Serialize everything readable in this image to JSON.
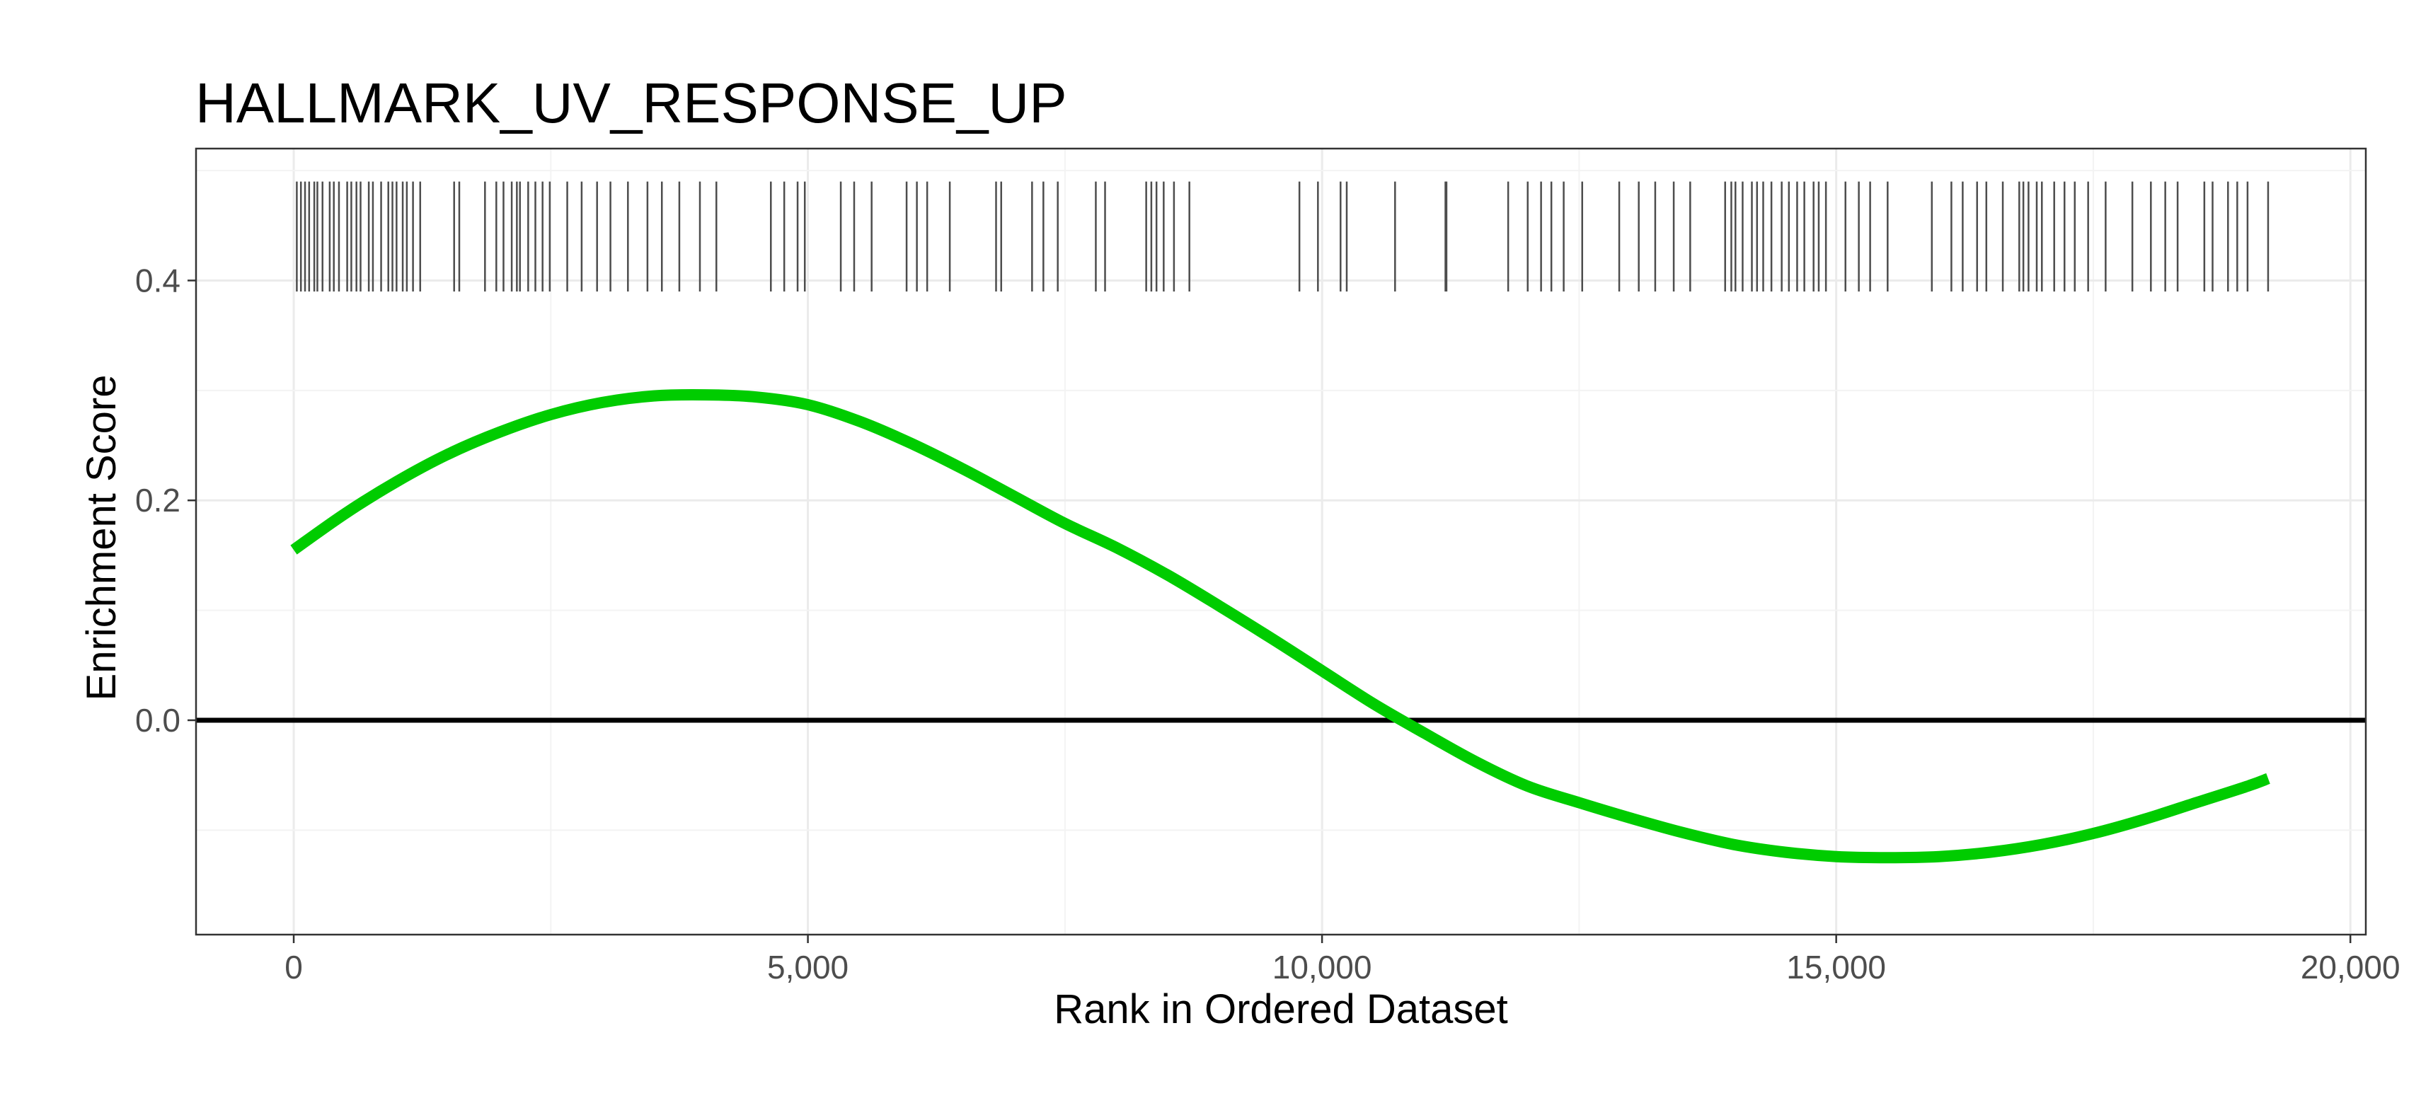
{
  "chart_data": {
    "type": "line",
    "title": "HALLMARK_UV_RESPONSE_UP",
    "xlabel": "Rank in Ordered Dataset",
    "ylabel": "Enrichment Score",
    "xlim": [
      -950,
      20150
    ],
    "ylim": [
      -0.195,
      0.52
    ],
    "x_ticks": [
      0,
      5000,
      10000,
      15000,
      20000
    ],
    "x_tick_labels": [
      "0",
      "5,000",
      "10,000",
      "15,000",
      "20,000"
    ],
    "y_ticks": [
      0.0,
      0.2,
      0.4
    ],
    "y_tick_labels": [
      "0.0",
      "0.2",
      "0.4"
    ],
    "grid": true,
    "reference_line_y": 0.0,
    "series": [
      {
        "color": "#00cc00",
        "x": [
          0,
          500,
          1000,
          1500,
          2000,
          2500,
          3000,
          3500,
          4000,
          4500,
          5000,
          5500,
          6000,
          6500,
          7000,
          7500,
          8000,
          8500,
          9000,
          9500,
          10000,
          10500,
          11000,
          11500,
          12000,
          12500,
          13000,
          13500,
          14000,
          14500,
          15000,
          15500,
          16000,
          16500,
          17000,
          17500,
          18000,
          18500,
          19000,
          19200
        ],
        "y": [
          0.155,
          0.188,
          0.217,
          0.242,
          0.262,
          0.278,
          0.289,
          0.295,
          0.296,
          0.294,
          0.287,
          0.272,
          0.252,
          0.229,
          0.204,
          0.179,
          0.157,
          0.132,
          0.104,
          0.075,
          0.045,
          0.015,
          -0.012,
          -0.038,
          -0.06,
          -0.075,
          -0.089,
          -0.102,
          -0.113,
          -0.12,
          -0.124,
          -0.125,
          -0.124,
          -0.12,
          -0.113,
          -0.103,
          -0.09,
          -0.075,
          -0.06,
          -0.053
        ]
      }
    ],
    "rug_ticks_y_range": [
      0.39,
      0.49
    ],
    "rug_positions": [
      30,
      70,
      110,
      150,
      200,
      230,
      280,
      350,
      390,
      440,
      520,
      560,
      610,
      650,
      730,
      770,
      850,
      920,
      960,
      1000,
      1060,
      1100,
      1160,
      1230,
      1560,
      1610,
      1860,
      1970,
      2040,
      2120,
      2170,
      2200,
      2280,
      2350,
      2420,
      2490,
      2660,
      2800,
      2950,
      3080,
      3250,
      3440,
      3580,
      3750,
      3950,
      4110,
      4640,
      4770,
      4900,
      4970,
      5320,
      5450,
      5620,
      5960,
      6060,
      6160,
      6380,
      6830,
      6880,
      7180,
      7290,
      7430,
      7800,
      7890,
      8290,
      8340,
      8390,
      8460,
      8560,
      8710,
      9780,
      9960,
      10180,
      10240,
      10710,
      11200,
      11210,
      11810,
      12000,
      12130,
      12230,
      12350,
      12530,
      12890,
      13080,
      13240,
      13420,
      13580,
      13920,
      13980,
      14020,
      14090,
      14180,
      14230,
      14290,
      14370,
      14470,
      14540,
      14620,
      14690,
      14780,
      14830,
      14900,
      15090,
      15220,
      15330,
      15500,
      15930,
      16120,
      16230,
      16370,
      16460,
      16620,
      16780,
      16820,
      16870,
      16950,
      17000,
      17120,
      17220,
      17320,
      17450,
      17620,
      17880,
      18060,
      18200,
      18320,
      18580,
      18660,
      18810,
      18900,
      19000,
      19200
    ]
  }
}
